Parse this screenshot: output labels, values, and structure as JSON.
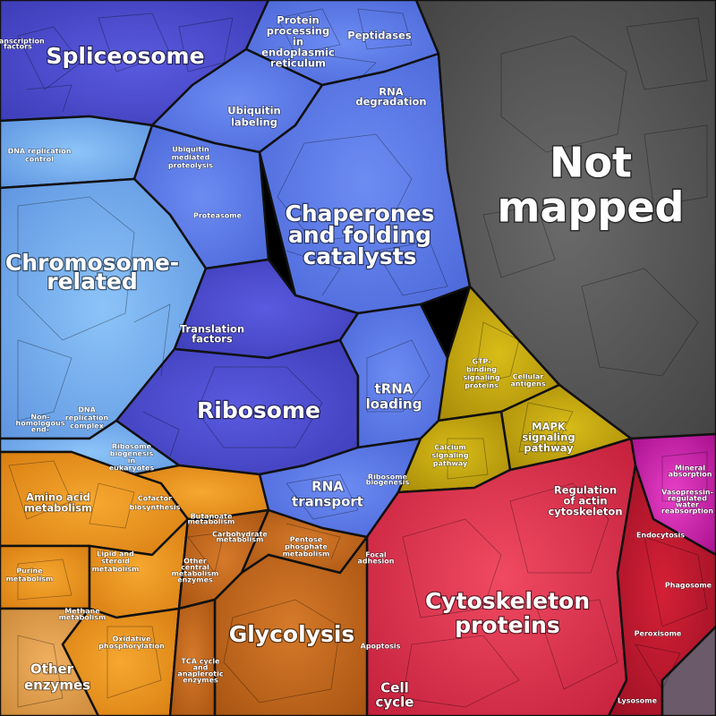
{
  "colors": {
    "blue_dark": "#4f4fd0",
    "blue_mid": "#5b78e8",
    "blue_light": "#76aef0",
    "gray": "#555555",
    "yellow": "#c9aa10",
    "orange": "#e8961c",
    "brown": "#c46a1e",
    "red": "#e0304a",
    "crimson": "#c01a30",
    "magenta": "#d020b0"
  },
  "labels": {
    "spliceosome": "Spliceosome",
    "not_mapped": [
      "Not",
      "mapped"
    ],
    "chaperones": [
      "Chaperones",
      "and folding",
      "catalysts"
    ],
    "chromosome": [
      "Chromosome-",
      "related"
    ],
    "ribosome": "Ribosome",
    "glycolysis": "Glycolysis",
    "cytoskeleton": [
      "Cytoskeleton",
      "proteins"
    ],
    "protein_processing": [
      "Protein",
      "processing",
      "in",
      "endoplasmic",
      "reticulum"
    ],
    "peptidases": "Peptidases",
    "rna_degradation": [
      "RNA",
      "degradation"
    ],
    "ubiquitin_labeling": [
      "Ubiquitin",
      "labeling"
    ],
    "ubiquitin_proteolysis": [
      "Ubiquitin",
      "mediated",
      "proteolysis"
    ],
    "dna_replication_control": [
      "DNA replication",
      "control"
    ],
    "proteasome": "Proteasome",
    "translation_factors": [
      "Translation",
      "factors"
    ],
    "trna_loading": [
      "tRNA",
      "loading"
    ],
    "rna_transport": [
      "RNA",
      "transport"
    ],
    "dna_replication_complex": [
      "DNA",
      "replication",
      "complex"
    ],
    "ribosome_biogenesis": [
      "Ribosome",
      "biogenesis",
      "in",
      "eukaryotes"
    ],
    "gtp_binding": [
      "GTP-",
      "binding",
      "signaling",
      "proteins"
    ],
    "mapk": [
      "MAPK",
      "signaling",
      "pathway"
    ],
    "calcium": [
      "Calcium",
      "signaling",
      "pathway"
    ],
    "regulation_actin": [
      "Regulation",
      "of actin",
      "cytoskeleton"
    ],
    "endocytosis": "Endocytosis",
    "phagosome": "Phagosome",
    "peroxisome": "Peroxisome",
    "lysosome": "Lysosome",
    "cell_cycle": [
      "Cell",
      "cycle"
    ],
    "amino_acid": [
      "Amino acid",
      "metabolism"
    ],
    "cofactor": [
      "Cofactor",
      "biosynthesis"
    ],
    "lipid": [
      "Lipid and",
      "steroid",
      "metabolism"
    ],
    "purine": [
      "Purine",
      "metabolism"
    ],
    "methane": [
      "Methane",
      "metabolism"
    ],
    "oxidative": [
      "Oxidative",
      "phosphorylation"
    ],
    "other_enzymes": [
      "Other",
      "enzymes"
    ],
    "pentose": [
      "Pentose",
      "phosphate",
      "metabolism"
    ],
    "other_central": [
      "Other",
      "central",
      "metabolism",
      "enzymes"
    ],
    "tca": [
      "TCA cycle",
      "and",
      "anaplerotic",
      "enzymes"
    ],
    "butanoate": [
      "Butanoate",
      "metabolism"
    ],
    "carbohydrate": [
      "Carbohydrate",
      "metabolism"
    ],
    "focal_adhesion": [
      "Focal",
      "adhesion"
    ],
    "apoptosis": "Apoptosis",
    "cellular_antigens": [
      "Cellular",
      "antigens"
    ],
    "ribosome_biogenesis2": [
      "Ribosome",
      "biogenesis"
    ],
    "transcription_factors": [
      "Transcription",
      "factors"
    ],
    "mineral_absorption": [
      "Mineral",
      "absorption"
    ],
    "vasopressin": [
      "Vasopressin-",
      "regulated",
      "water",
      "reabsorption"
    ],
    "non_homologous": [
      "Non-",
      "homologous",
      "end-",
      "joining"
    ]
  }
}
